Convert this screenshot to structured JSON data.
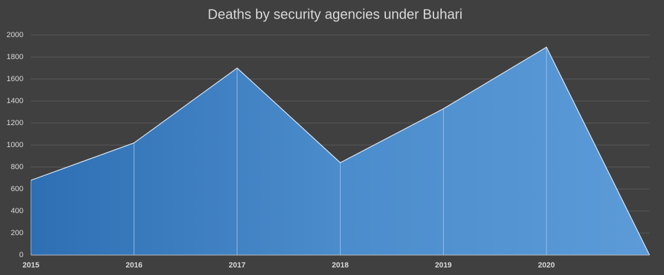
{
  "chart_data": {
    "type": "area",
    "title": "Deaths by security agencies under Buhari",
    "categories": [
      "2015",
      "2016",
      "2017",
      "2018",
      "2019",
      "2020",
      null
    ],
    "values": [
      680,
      1020,
      1700,
      840,
      1330,
      1890,
      0
    ],
    "color": "#4a88cc",
    "ylim": [
      0,
      2000
    ],
    "yticks": [
      0,
      200,
      400,
      600,
      800,
      1000,
      1200,
      1400,
      1600,
      1800,
      2000
    ],
    "grid": true
  }
}
